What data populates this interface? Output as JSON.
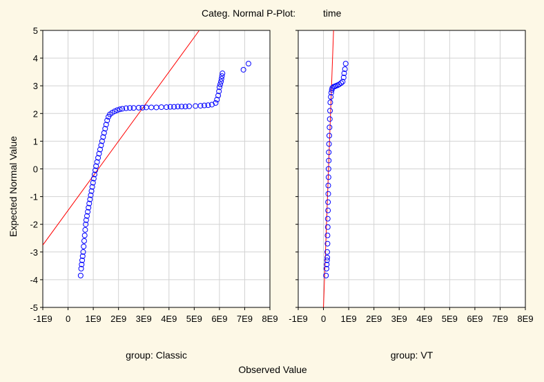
{
  "title": "Categ. Normal P-Plot:",
  "title_var": "time",
  "xlabel": "Observed Value",
  "ylabel": "Expected Normal Value",
  "chart_data": {
    "type": "scatter",
    "title": "Categ. Normal P-Plot: time",
    "xlabel": "Observed Value",
    "ylabel": "Expected Normal Value",
    "xlim": [
      -1000000000,
      8000000000
    ],
    "ylim": [
      -5,
      5
    ],
    "x_ticks": [
      -1000000000,
      0,
      1000000000,
      2000000000,
      3000000000,
      4000000000,
      5000000000,
      6000000000,
      7000000000,
      8000000000
    ],
    "x_tick_labels": [
      "-1E9",
      "0",
      "1E9",
      "2E9",
      "3E9",
      "4E9",
      "5E9",
      "6E9",
      "7E9",
      "8E9"
    ],
    "y_ticks": [
      -5,
      -4,
      -3,
      -2,
      -1,
      0,
      1,
      2,
      3,
      4,
      5
    ],
    "y_tick_labels": [
      "-5",
      "-4",
      "-3",
      "-2",
      "-1",
      "0",
      "1",
      "2",
      "3",
      "4",
      "5"
    ],
    "grid": true,
    "marker_color": "#0000ff",
    "line_color": "#ff0000",
    "panels": [
      {
        "label": "group: Classic",
        "reference_line": [
          [
            -1000000000,
            -2.75
          ],
          [
            5200000000,
            5.0
          ]
        ],
        "points": [
          [
            500000000,
            -3.85
          ],
          [
            520000000,
            -3.6
          ],
          [
            540000000,
            -3.45
          ],
          [
            560000000,
            -3.3
          ],
          [
            580000000,
            -3.15
          ],
          [
            600000000,
            -3.0
          ],
          [
            620000000,
            -2.8
          ],
          [
            640000000,
            -2.6
          ],
          [
            660000000,
            -2.4
          ],
          [
            680000000,
            -2.2
          ],
          [
            700000000,
            -2.0
          ],
          [
            720000000,
            -1.85
          ],
          [
            750000000,
            -1.7
          ],
          [
            780000000,
            -1.55
          ],
          [
            810000000,
            -1.4
          ],
          [
            840000000,
            -1.25
          ],
          [
            870000000,
            -1.1
          ],
          [
            900000000,
            -0.95
          ],
          [
            930000000,
            -0.8
          ],
          [
            960000000,
            -0.65
          ],
          [
            990000000,
            -0.5
          ],
          [
            1020000000,
            -0.35
          ],
          [
            1050000000,
            -0.2
          ],
          [
            1080000000,
            -0.05
          ],
          [
            1110000000,
            0.1
          ],
          [
            1150000000,
            0.25
          ],
          [
            1190000000,
            0.4
          ],
          [
            1230000000,
            0.55
          ],
          [
            1270000000,
            0.7
          ],
          [
            1310000000,
            0.85
          ],
          [
            1350000000,
            1.0
          ],
          [
            1390000000,
            1.15
          ],
          [
            1430000000,
            1.3
          ],
          [
            1470000000,
            1.45
          ],
          [
            1510000000,
            1.6
          ],
          [
            1550000000,
            1.75
          ],
          [
            1600000000,
            1.88
          ],
          [
            1660000000,
            1.97
          ],
          [
            1750000000,
            2.03
          ],
          [
            1850000000,
            2.08
          ],
          [
            1950000000,
            2.12
          ],
          [
            2050000000,
            2.15
          ],
          [
            2150000000,
            2.17
          ],
          [
            2300000000,
            2.19
          ],
          [
            2450000000,
            2.2
          ],
          [
            2600000000,
            2.2
          ],
          [
            2800000000,
            2.21
          ],
          [
            2950000000,
            2.21
          ],
          [
            3100000000,
            2.22
          ],
          [
            3300000000,
            2.22
          ],
          [
            3500000000,
            2.22
          ],
          [
            3700000000,
            2.23
          ],
          [
            3900000000,
            2.23
          ],
          [
            4050000000,
            2.24
          ],
          [
            4200000000,
            2.24
          ],
          [
            4350000000,
            2.25
          ],
          [
            4500000000,
            2.25
          ],
          [
            4650000000,
            2.25
          ],
          [
            4800000000,
            2.26
          ],
          [
            5050000000,
            2.27
          ],
          [
            5250000000,
            2.28
          ],
          [
            5400000000,
            2.29
          ],
          [
            5550000000,
            2.3
          ],
          [
            5700000000,
            2.32
          ],
          [
            5850000000,
            2.38
          ],
          [
            5900000000,
            2.5
          ],
          [
            5950000000,
            2.65
          ],
          [
            5980000000,
            2.8
          ],
          [
            6000000000,
            2.95
          ],
          [
            6030000000,
            3.05
          ],
          [
            6060000000,
            3.15
          ],
          [
            6080000000,
            3.25
          ],
          [
            6100000000,
            3.35
          ],
          [
            6120000000,
            3.45
          ],
          [
            6950000000,
            3.58
          ],
          [
            7150000000,
            3.8
          ]
        ]
      },
      {
        "label": "group: VT",
        "reference_line": [
          [
            0,
            -5.0
          ],
          [
            400000000,
            5.0
          ]
        ],
        "points": [
          [
            100000000,
            -3.85
          ],
          [
            120000000,
            -3.6
          ],
          [
            130000000,
            -3.45
          ],
          [
            140000000,
            -3.3
          ],
          [
            150000000,
            -3.2
          ],
          [
            150000000,
            -3.0
          ],
          [
            160000000,
            -2.7
          ],
          [
            160000000,
            -2.4
          ],
          [
            170000000,
            -2.1
          ],
          [
            170000000,
            -1.8
          ],
          [
            180000000,
            -1.5
          ],
          [
            180000000,
            -1.2
          ],
          [
            190000000,
            -0.9
          ],
          [
            190000000,
            -0.6
          ],
          [
            200000000,
            -0.3
          ],
          [
            200000000,
            0.0
          ],
          [
            210000000,
            0.3
          ],
          [
            210000000,
            0.6
          ],
          [
            220000000,
            0.9
          ],
          [
            230000000,
            1.2
          ],
          [
            240000000,
            1.5
          ],
          [
            250000000,
            1.8
          ],
          [
            260000000,
            2.1
          ],
          [
            270000000,
            2.4
          ],
          [
            290000000,
            2.6
          ],
          [
            310000000,
            2.75
          ],
          [
            330000000,
            2.85
          ],
          [
            350000000,
            2.92
          ],
          [
            400000000,
            2.96
          ],
          [
            450000000,
            2.98
          ],
          [
            500000000,
            3.0
          ],
          [
            560000000,
            3.02
          ],
          [
            620000000,
            3.05
          ],
          [
            700000000,
            3.1
          ],
          [
            760000000,
            3.15
          ],
          [
            800000000,
            3.3
          ],
          [
            820000000,
            3.45
          ],
          [
            850000000,
            3.6
          ],
          [
            880000000,
            3.8
          ]
        ]
      }
    ]
  }
}
